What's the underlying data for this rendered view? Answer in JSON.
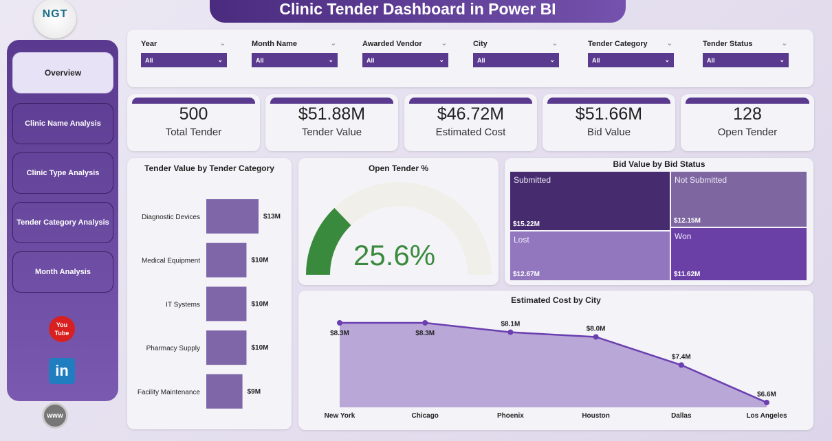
{
  "header": {
    "title": "Clinic Tender Dashboard in Power BI",
    "logo_text": "NGT"
  },
  "sidebar": {
    "items": [
      {
        "label": "Overview",
        "active": true
      },
      {
        "label": "Clinic Name Analysis"
      },
      {
        "label": "Clinic Type Analysis"
      },
      {
        "label": "Tender Category Analysis"
      },
      {
        "label": "Month Analysis"
      }
    ],
    "social": {
      "youtube": "You Tube",
      "linkedin": "in",
      "web": "www"
    }
  },
  "filters": [
    {
      "label": "Year",
      "value": "All"
    },
    {
      "label": "Month Name",
      "value": "All"
    },
    {
      "label": "Awarded Vendor",
      "value": "All"
    },
    {
      "label": "City",
      "value": "All"
    },
    {
      "label": "Tender Category",
      "value": "All"
    },
    {
      "label": "Tender Status",
      "value": "All"
    }
  ],
  "kpis": [
    {
      "value": "500",
      "label": "Total Tender"
    },
    {
      "value": "$51.88M",
      "label": "Tender Value"
    },
    {
      "value": "$46.72M",
      "label": "Estimated Cost"
    },
    {
      "value": "$51.66M",
      "label": "Bid Value"
    },
    {
      "value": "128",
      "label": "Open Tender"
    }
  ],
  "colors": {
    "primary": "#5a3a8f",
    "bar": "#7e66a8",
    "gauge": "#3a8a3e",
    "line": "#6a3fb0",
    "area": "#b9a7d8"
  },
  "chart_data": [
    {
      "type": "bar",
      "title": "Tender Value by Tender Category",
      "categories": [
        "Diagnostic Devices",
        "Medical Equipment",
        "IT Systems",
        "Pharmacy Supply",
        "Facility Maintenance"
      ],
      "values": [
        13,
        10,
        10,
        10,
        9
      ],
      "labels": [
        "$13M",
        "$10M",
        "$10M",
        "$10M",
        "$9M"
      ],
      "unit": "$M"
    },
    {
      "type": "gauge",
      "title": "Open Tender %",
      "value": 25.6,
      "label": "25.6%",
      "max": 100
    },
    {
      "type": "treemap",
      "title": "Bid Value by Bid Status",
      "items": [
        {
          "name": "Submitted",
          "value": 15.22,
          "label": "$15.22M",
          "color": "#462c6e"
        },
        {
          "name": "Not Submitted",
          "value": 12.15,
          "label": "$12.15M",
          "color": "#7e67a0"
        },
        {
          "name": "Lost",
          "value": 12.67,
          "label": "$12.67M",
          "color": "#9277be"
        },
        {
          "name": "Won",
          "value": 11.62,
          "label": "$11.62M",
          "color": "#6a3fa6"
        }
      ]
    },
    {
      "type": "area",
      "title": "Estimated Cost by City",
      "categories": [
        "New York",
        "Chicago",
        "Phoenix",
        "Houston",
        "Dallas",
        "Los Angeles"
      ],
      "values": [
        8.3,
        8.3,
        8.1,
        8.0,
        7.4,
        6.6
      ],
      "labels": [
        "$8.3M",
        "$8.3M",
        "$8.1M",
        "$8.0M",
        "$7.4M",
        "$6.6M"
      ]
    }
  ]
}
